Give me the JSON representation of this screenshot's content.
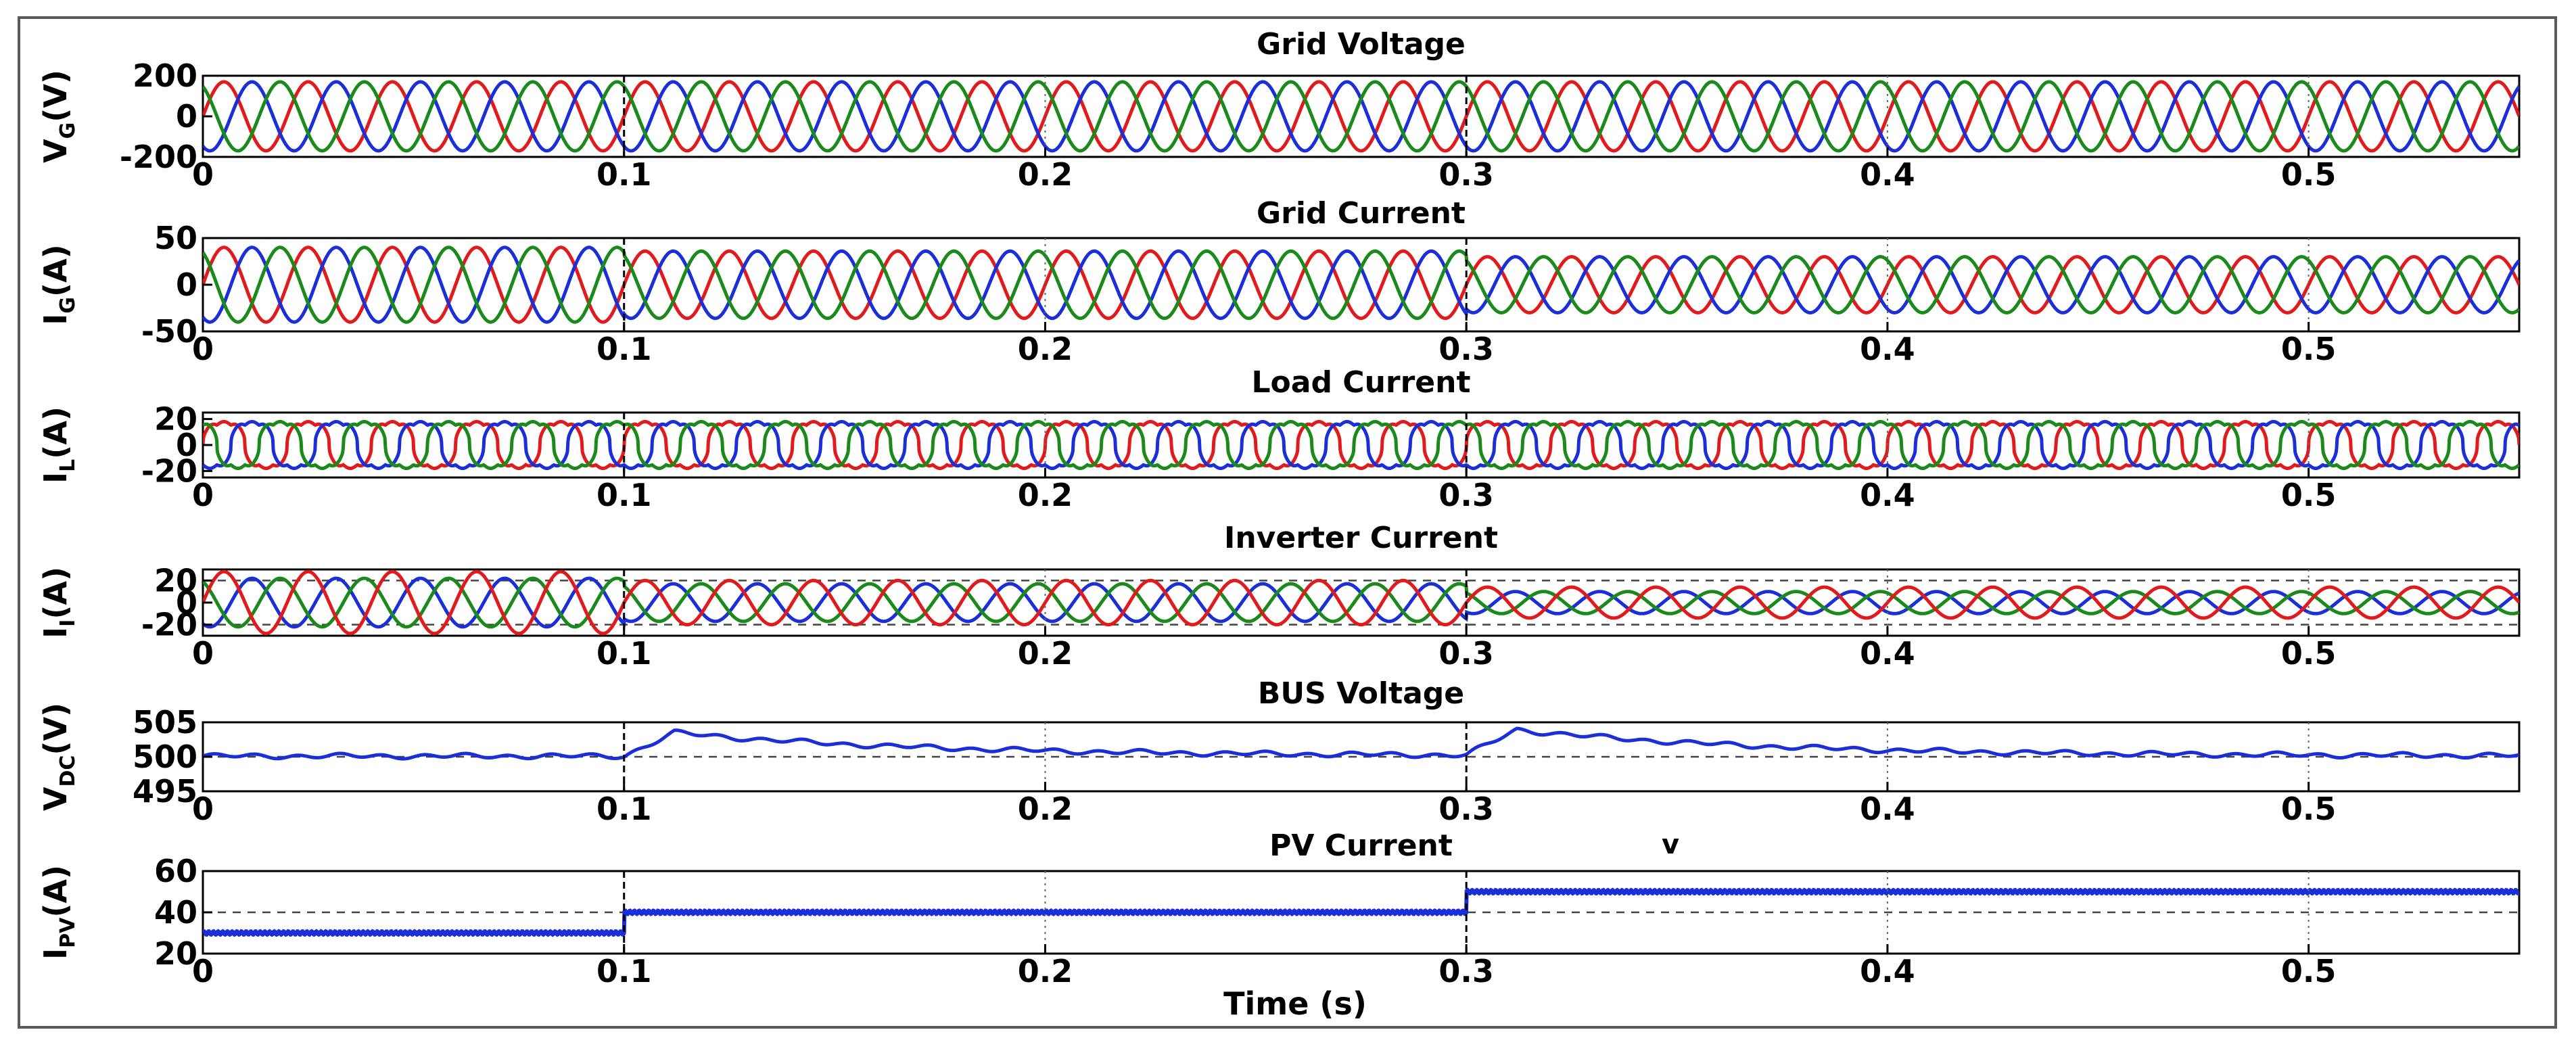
{
  "chart_data": [
    {
      "type": "line",
      "title": "Grid Voltage",
      "ylabel_main": "V",
      "ylabel_sub": "G",
      "ylabel_unit": "(V)",
      "xlim": [
        0,
        0.55
      ],
      "ylim": [
        -200,
        200
      ],
      "yticks": [
        "200",
        "0",
        "-200"
      ],
      "yticks_values": [
        200,
        0,
        -200
      ],
      "xticks": [
        "0",
        "0.1",
        "0.2",
        "0.3",
        "0.4",
        "0.5"
      ],
      "xticks_values": [
        0,
        0.1,
        0.2,
        0.3,
        0.4,
        0.5
      ],
      "series": [
        {
          "color": "#e11b1b",
          "kind": "sine",
          "amplitude": [
            [
              0,
              170
            ]
          ],
          "frequency": 50,
          "phase_deg": 0
        },
        {
          "color": "#1b2fd9",
          "kind": "sine",
          "amplitude": [
            [
              0,
              170
            ]
          ],
          "frequency": 50,
          "phase_deg": -120
        },
        {
          "color": "#1a8a1a",
          "kind": "sine",
          "amplitude": [
            [
              0,
              170
            ]
          ],
          "frequency": 50,
          "phase_deg": 120
        }
      ]
    },
    {
      "type": "line",
      "title": "Grid Current",
      "ylabel_main": "I",
      "ylabel_sub": "G",
      "ylabel_unit": "(A)",
      "xlim": [
        0,
        0.55
      ],
      "ylim": [
        -50,
        50
      ],
      "yticks": [
        "50",
        "0",
        "-50"
      ],
      "yticks_values": [
        50,
        0,
        -50
      ],
      "xticks": [
        "0",
        "0.1",
        "0.2",
        "0.3",
        "0.4",
        "0.5"
      ],
      "xticks_values": [
        0,
        0.1,
        0.2,
        0.3,
        0.4,
        0.5
      ],
      "series": [
        {
          "color": "#e11b1b",
          "kind": "sine",
          "amplitude": [
            [
              0,
              40
            ],
            [
              0.1,
              36
            ],
            [
              0.3,
              30
            ]
          ],
          "frequency": 50,
          "phase_deg": 0
        },
        {
          "color": "#1b2fd9",
          "kind": "sine",
          "amplitude": [
            [
              0,
              40
            ],
            [
              0.1,
              36
            ],
            [
              0.3,
              30
            ]
          ],
          "frequency": 50,
          "phase_deg": -120
        },
        {
          "color": "#1a8a1a",
          "kind": "sine",
          "amplitude": [
            [
              0,
              40
            ],
            [
              0.1,
              36
            ],
            [
              0.3,
              30
            ]
          ],
          "frequency": 50,
          "phase_deg": 120
        }
      ]
    },
    {
      "type": "line",
      "title": "Load Current",
      "ylabel_main": "I",
      "ylabel_sub": "L",
      "ylabel_unit": "(A)",
      "xlim": [
        0,
        0.55
      ],
      "ylim": [
        -25,
        25
      ],
      "yticks": [
        "20",
        "0",
        "-20"
      ],
      "yticks_values": [
        20,
        0,
        -20
      ],
      "xticks": [
        "0",
        "0.1",
        "0.2",
        "0.3",
        "0.4",
        "0.5"
      ],
      "xticks_values": [
        0,
        0.1,
        0.2,
        0.3,
        0.4,
        0.5
      ],
      "series": [
        {
          "color": "#e11b1b",
          "kind": "rectified",
          "amplitude": [
            [
              0,
              18
            ]
          ],
          "frequency": 50,
          "phase_deg": 0
        },
        {
          "color": "#1b2fd9",
          "kind": "rectified",
          "amplitude": [
            [
              0,
              18
            ]
          ],
          "frequency": 50,
          "phase_deg": -120
        },
        {
          "color": "#1a8a1a",
          "kind": "rectified",
          "amplitude": [
            [
              0,
              18
            ]
          ],
          "frequency": 50,
          "phase_deg": 120
        }
      ]
    },
    {
      "type": "line",
      "title": "Inverter Current",
      "ylabel_main": "I",
      "ylabel_sub": "I",
      "ylabel_unit": "(A)",
      "xlim": [
        0,
        0.55
      ],
      "ylim": [
        -30,
        30
      ],
      "yticks": [
        "20",
        "0",
        "-20"
      ],
      "yticks_values": [
        20,
        0,
        -20
      ],
      "xticks": [
        "0",
        "0.1",
        "0.2",
        "0.3",
        "0.4",
        "0.5"
      ],
      "xticks_values": [
        0,
        0.1,
        0.2,
        0.3,
        0.4,
        0.5
      ],
      "grid_y": [
        20,
        -20
      ],
      "series": [
        {
          "color": "#1b2fd9",
          "kind": "sine",
          "amplitude": [
            [
              0,
              22
            ],
            [
              0.1,
              17
            ],
            [
              0.3,
              10
            ]
          ],
          "frequency": 50,
          "phase_deg": -120
        },
        {
          "color": "#1a8a1a",
          "kind": "sine",
          "amplitude": [
            [
              0,
              22
            ],
            [
              0.1,
              17
            ],
            [
              0.3,
              10
            ]
          ],
          "frequency": 50,
          "phase_deg": 120
        },
        {
          "color": "#e11b1b",
          "kind": "sine",
          "amplitude": [
            [
              0,
              28
            ],
            [
              0.1,
              20
            ],
            [
              0.3,
              14
            ]
          ],
          "frequency": 50,
          "phase_deg": 0
        }
      ]
    },
    {
      "type": "line",
      "title": "BUS Voltage",
      "ylabel_main": "V",
      "ylabel_sub": "DC",
      "ylabel_unit": "(V)",
      "xlim": [
        0,
        0.55
      ],
      "ylim": [
        495,
        505
      ],
      "yticks": [
        "505",
        "500",
        "495"
      ],
      "yticks_values": [
        505,
        500,
        495
      ],
      "xticks": [
        "0",
        "0.1",
        "0.2",
        "0.3",
        "0.4",
        "0.5"
      ],
      "xticks_values": [
        0,
        0.1,
        0.2,
        0.3,
        0.4,
        0.5
      ],
      "grid_y": [
        500
      ],
      "series": [
        {
          "color": "#1b2fd9",
          "kind": "dc",
          "nominal": 500.1,
          "steps": [
            [
              0.1,
              503.5
            ],
            [
              0.3,
              503.8
            ]
          ],
          "decay": 0.06,
          "ripple": 0.25
        }
      ]
    },
    {
      "type": "line",
      "title": "PV Current",
      "ylabel_main": "I",
      "ylabel_sub": "PV",
      "ylabel_unit": "(A)",
      "xlabel": "Time (s)",
      "xlim": [
        0,
        0.55
      ],
      "ylim": [
        20,
        60
      ],
      "yticks": [
        "60",
        "40",
        "20"
      ],
      "yticks_values": [
        60,
        40,
        20
      ],
      "xticks": [
        "0",
        "0.1",
        "0.2",
        "0.3",
        "0.4",
        "0.5"
      ],
      "xticks_values": [
        0,
        0.1,
        0.2,
        0.3,
        0.4,
        0.5
      ],
      "grid_y": [
        40
      ],
      "series": [
        {
          "color": "#1b2fd9",
          "kind": "step",
          "levels": [
            [
              0,
              30
            ],
            [
              0.1,
              40
            ],
            [
              0.3,
              50
            ]
          ],
          "ripple": 0.8
        }
      ]
    }
  ],
  "stray_mark": "v",
  "vlines_x": [
    0.1,
    0.3
  ]
}
